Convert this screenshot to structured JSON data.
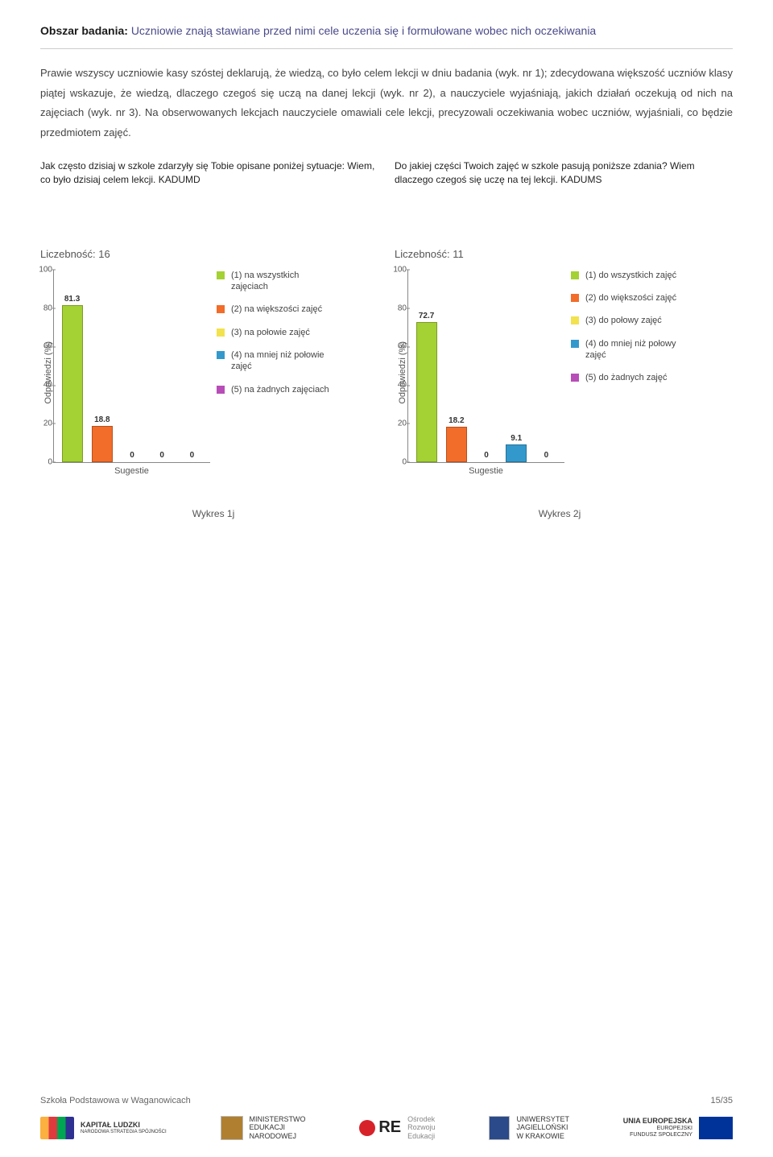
{
  "section": {
    "label": "Obszar badania:",
    "title_rest": "Uczniowie znają stawiane przed nimi cele uczenia się i formułowane wobec nich oczekiwania"
  },
  "body_text": "Prawie wszyscy uczniowie kasy szóstej deklarują, że wiedzą, co było celem lekcji w dniu badania (wyk. nr 1); zdecydowana większość uczniów klasy piątej wskazuje, że wiedzą, dlaczego czegoś się uczą na danej lekcji (wyk. nr 2), a nauczyciele wyjaśniają, jakich działań oczekują od nich na zajęciach (wyk. nr 3). Na obserwowanych lekcjach nauczyciele omawiali cele lekcji, precyzowali oczekiwania wobec uczniów, wyjaśniali, co będzie przedmiotem zajęć.",
  "chart1": {
    "question": "Jak często dzisiaj w szkole zdarzyły się Tobie opisane poniżej sytuacje:\nWiem, co było dzisiaj celem lekcji. KADUMD",
    "count_label": "Liczebność: 16",
    "y_label": "Odpowiedzi (%)",
    "x_label": "Sugestie",
    "ylim": [
      0,
      100
    ],
    "ytick_step": 20,
    "categories": [
      "1",
      "2",
      "3",
      "4",
      "5"
    ],
    "values": [
      81.3,
      18.8,
      0,
      0,
      0
    ],
    "value_labels": [
      "81.3",
      "18.8",
      "0",
      "0",
      "0"
    ],
    "bar_colors": [
      "#a4d133",
      "#f26c2a",
      "#f2e24d",
      "#3399cc",
      "#b84db8"
    ],
    "legend": [
      {
        "color": "#a4d133",
        "label": "(1) na wszystkich zajęciach"
      },
      {
        "color": "#f26c2a",
        "label": "(2) na większości zajęć"
      },
      {
        "color": "#f2e24d",
        "label": "(3) na połowie zajęć"
      },
      {
        "color": "#3399cc",
        "label": "(4) na mniej niż połowie zajęć"
      },
      {
        "color": "#b84db8",
        "label": "(5) na żadnych zajęciach"
      }
    ],
    "caption": "Wykres 1j"
  },
  "chart2": {
    "question": "Do jakiej części Twoich zajęć w szkole pasują poniższe zdania?\nWiem dlaczego czegoś się uczę na tej lekcji. KADUMS",
    "count_label": "Liczebność: 11",
    "y_label": "Odpowiedzi (%)",
    "x_label": "Sugestie",
    "ylim": [
      0,
      100
    ],
    "ytick_step": 20,
    "categories": [
      "1",
      "2",
      "3",
      "4",
      "5"
    ],
    "values": [
      72.7,
      18.2,
      0,
      9.1,
      0
    ],
    "value_labels": [
      "72.7",
      "18.2",
      "0",
      "9.1",
      "0"
    ],
    "bar_colors": [
      "#a4d133",
      "#f26c2a",
      "#f2e24d",
      "#3399cc",
      "#b84db8"
    ],
    "legend": [
      {
        "color": "#a4d133",
        "label": "(1) do wszystkich zajęć"
      },
      {
        "color": "#f26c2a",
        "label": "(2) do większości zajęć"
      },
      {
        "color": "#f2e24d",
        "label": "(3) do połowy zajęć"
      },
      {
        "color": "#3399cc",
        "label": "(4) do mniej niż połowy zajęć"
      },
      {
        "color": "#b84db8",
        "label": "(5) do żadnych zajęć"
      }
    ],
    "caption": "Wykres 2j"
  },
  "footer": {
    "left": "Szkoła Podstawowa w Waganowicach",
    "right": "15/35",
    "logos": {
      "kl_main": "KAPITAŁ LUDZKI",
      "kl_sub": "NARODOWA STRATEGIA SPÓJNOŚCI",
      "men": "MINISTERSTWO\nEDUKACJI\nNARODOWEJ",
      "ore_main": "RE",
      "ore_sub": "Ośrodek\nRozwoju\nEdukacji",
      "uj": "UNIWERSYTET\nJAGIELLOŃSKI\nW KRAKOWIE",
      "eu_main": "UNIA EUROPEJSKA",
      "eu_sub": "EUROPEJSKI\nFUNDUSZ SPOŁECZNY"
    }
  }
}
